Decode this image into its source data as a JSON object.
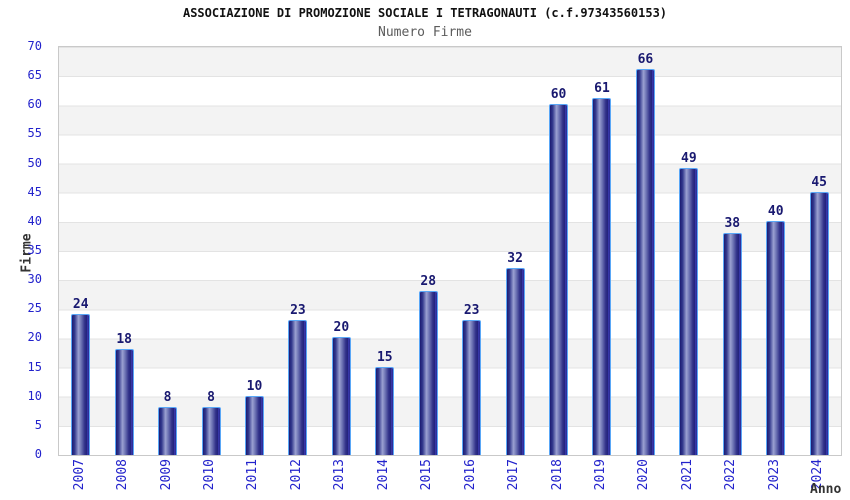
{
  "chart_data": {
    "type": "bar",
    "title": "ASSOCIAZIONE DI PROMOZIONE SOCIALE I TETRAGONAUTI (c.f.97343560153)",
    "subtitle": "Numero Firme",
    "xlabel": "Anno",
    "ylabel": "Firme",
    "categories": [
      "2007",
      "2008",
      "2009",
      "2010",
      "2011",
      "2012",
      "2013",
      "2014",
      "2015",
      "2016",
      "2017",
      "2018",
      "2019",
      "2020",
      "2021",
      "2022",
      "2023",
      "2024"
    ],
    "values": [
      24,
      18,
      8,
      8,
      10,
      23,
      20,
      15,
      28,
      23,
      32,
      60,
      61,
      66,
      49,
      38,
      40,
      45
    ],
    "ylim": [
      0,
      70
    ],
    "yticks": [
      0,
      5,
      10,
      15,
      20,
      25,
      30,
      35,
      40,
      45,
      50,
      55,
      60,
      65,
      70
    ],
    "grid": "horizontal alternating bands every 5 units, light gray lines",
    "legend": "none",
    "colors": {
      "bar_border": "#59a7f7",
      "bar_dark": "#1b1b72",
      "bar_mid": "#343a8e",
      "bar_light": "#9ba1d2",
      "bar_shade": "#33338a",
      "bar_stripe": "#4343c2",
      "value_label": "#191970",
      "tick_label": "#2323cc",
      "axis_title": "#333333",
      "subtitle_color": "#5c5c5c",
      "band_fill": "#f3f3f3",
      "grid_line": "#e3e3e3",
      "plot_border": "#c9c9c9"
    }
  }
}
